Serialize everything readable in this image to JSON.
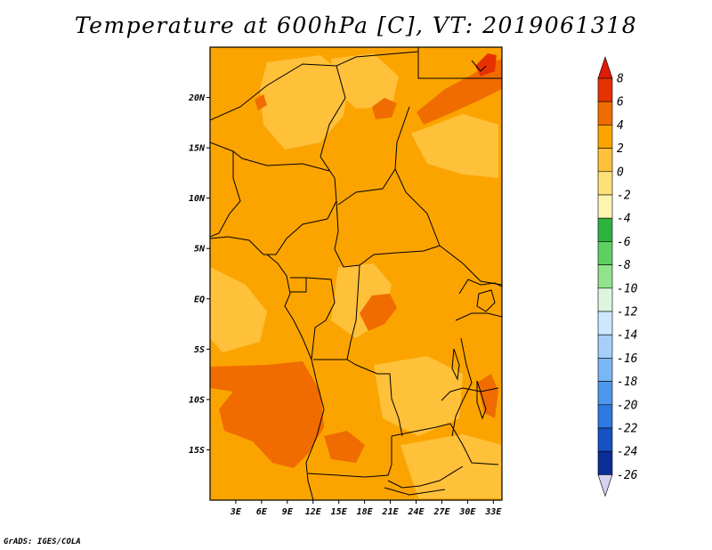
{
  "title": "Temperature at 600hPa [C], VT: 2019061318",
  "credit": "GrADS: IGES/COLA",
  "map": {
    "lat_range": [
      -20,
      25
    ],
    "lon_range": [
      0,
      34
    ],
    "lat_ticks": [
      {
        "value": 20,
        "label": "20N"
      },
      {
        "value": 15,
        "label": "15N"
      },
      {
        "value": 10,
        "label": "10N"
      },
      {
        "value": 5,
        "label": "5N"
      },
      {
        "value": 0,
        "label": "EQ"
      },
      {
        "value": -5,
        "label": "5S"
      },
      {
        "value": -10,
        "label": "10S"
      },
      {
        "value": -15,
        "label": "15S"
      }
    ],
    "lon_ticks": [
      {
        "value": 3,
        "label": "3E"
      },
      {
        "value": 6,
        "label": "6E"
      },
      {
        "value": 9,
        "label": "9E"
      },
      {
        "value": 12,
        "label": "12E"
      },
      {
        "value": 15,
        "label": "15E"
      },
      {
        "value": 18,
        "label": "18E"
      },
      {
        "value": 21,
        "label": "21E"
      },
      {
        "value": 24,
        "label": "24E"
      },
      {
        "value": 27,
        "label": "27E"
      },
      {
        "value": 30,
        "label": "30E"
      },
      {
        "value": 33,
        "label": "33E"
      }
    ]
  },
  "colorbar": {
    "labels": [
      "8",
      "6",
      "4",
      "2",
      "0",
      "-2",
      "-4",
      "-6",
      "-8",
      "-10",
      "-12",
      "-14",
      "-16",
      "-18",
      "-20",
      "-22",
      "-24",
      "-26"
    ],
    "colors": [
      "#e63200",
      "#f06c00",
      "#fba400",
      "#ffc03a",
      "#ffe078",
      "#fff3b0",
      "#2eb33e",
      "#5ecf62",
      "#92e38c",
      "#dcf5df",
      "#cde7ff",
      "#a6cefb",
      "#7ab6f4",
      "#4d97ec",
      "#2f79e1",
      "#1652c4",
      "#0b2d96"
    ],
    "top_color": "#e01b08",
    "bottom_color": "#d4d4f0"
  },
  "colors": {
    "field_base": "#fba400",
    "field_light": "#ffc03a",
    "field_warm": "#f06c00",
    "field_hot": "#e63200"
  }
}
